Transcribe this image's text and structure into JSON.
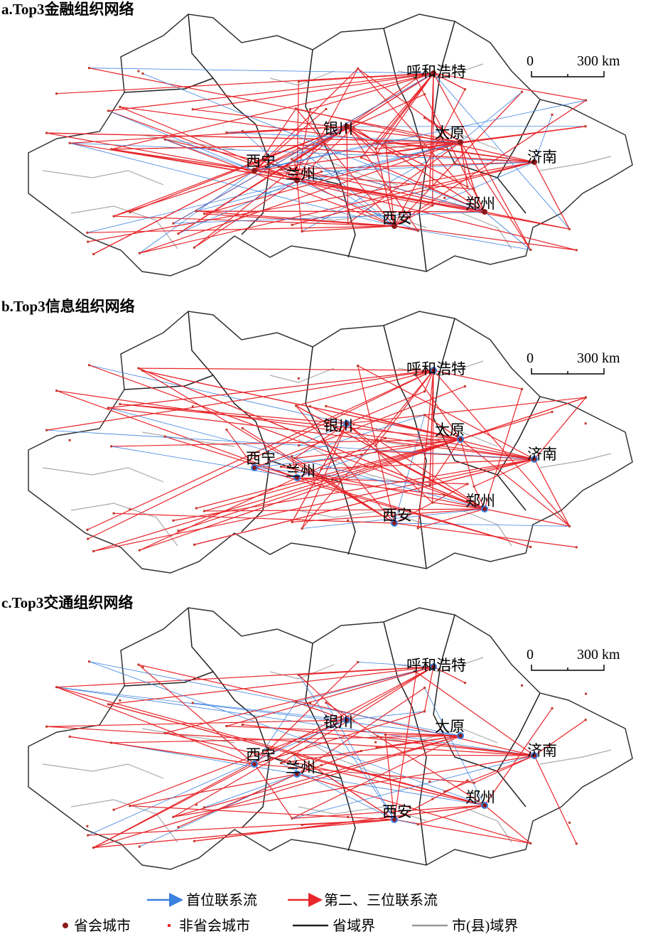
{
  "panels": [
    {
      "title": "a.Top3金融组织网络",
      "scale": {
        "zero": "0",
        "distance": "300 km"
      },
      "cities": [
        "呼和浩特",
        "银川",
        "太原",
        "济南",
        "西宁",
        "兰州",
        "郑州",
        "西安"
      ]
    },
    {
      "title": "b.Top3信息组织网络",
      "scale": {
        "zero": "0",
        "distance": "300 km"
      },
      "cities": [
        "呼和浩特",
        "银川",
        "太原",
        "济南",
        "西宁",
        "兰州",
        "郑州",
        "西安"
      ]
    },
    {
      "title": "c.Top3交通组织网络",
      "scale": {
        "zero": "0",
        "distance": "300 km"
      },
      "cities": [
        "呼和浩特",
        "银川",
        "太原",
        "济南",
        "西宁",
        "兰州",
        "郑州",
        "西安"
      ]
    }
  ],
  "legend": {
    "primary_flow": "首位联系流",
    "secondary_flow": "第二、三位联系流",
    "capital_city": "省会城市",
    "non_capital_city": "非省会城市",
    "province_boundary": "省域界",
    "county_boundary": "市(县)域界"
  }
}
